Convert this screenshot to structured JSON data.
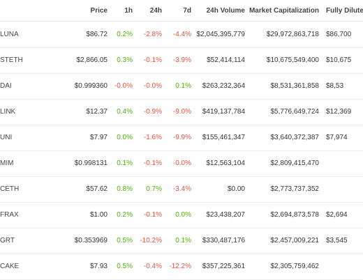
{
  "colors": {
    "positive": "#4eaf0a",
    "negative": "#e15241",
    "text": "#333333"
  },
  "headers": {
    "price": "Price",
    "h1": "1h",
    "h24": "24h",
    "d7": "7d",
    "volume": "24h Volume",
    "mcap": "Market Capitalization",
    "fdv": "Fully Diluted V"
  },
  "rows": [
    {
      "symbol": "LUNA",
      "price": "$86.72",
      "h1": "0.2%",
      "h24": "-2.8%",
      "d7": "-4.4%",
      "volume": "$2,045,395,779",
      "mcap": "$29,972,863,718",
      "fdv": "$86,700"
    },
    {
      "symbol": "STETH",
      "price": "$2,866.05",
      "h1": "0.3%",
      "h24": "-0.1%",
      "d7": "-3.9%",
      "volume": "$52,414,114",
      "mcap": "$10,675,549,400",
      "fdv": "$10,675"
    },
    {
      "symbol": "DAI",
      "price": "$0.999360",
      "h1": "-0.0%",
      "h24": "-0.0%",
      "d7": "0.1%",
      "volume": "$263,232,364",
      "mcap": "$8,531,361,858",
      "fdv": "$8,53"
    },
    {
      "symbol": "LINK",
      "price": "$12.37",
      "h1": "0.4%",
      "h24": "-0.9%",
      "d7": "-9.0%",
      "volume": "$419,137,784",
      "mcap": "$5,776,649,724",
      "fdv": "$12,369"
    },
    {
      "symbol": "UNI",
      "price": "$7.97",
      "h1": "0.0%",
      "h24": "-1.6%",
      "d7": "-9.9%",
      "volume": "$155,461,347",
      "mcap": "$3,640,372,387",
      "fdv": "$7,974"
    },
    {
      "symbol": "MIM",
      "price": "$0.998131",
      "h1": "0.1%",
      "h24": "-0.1%",
      "d7": "-0.0%",
      "volume": "$12,563,104",
      "mcap": "$2,809,415,470",
      "fdv": ""
    },
    {
      "symbol": "CETH",
      "price": "$57.62",
      "h1": "0.8%",
      "h24": "0.7%",
      "d7": "-3.4%",
      "volume": "$0.00",
      "mcap": "$2,773,737,352",
      "fdv": ""
    },
    {
      "symbol": "FRAX",
      "price": "$1.00",
      "h1": "0.2%",
      "h24": "-0.1%",
      "d7": "0.0%",
      "volume": "$23,438,207",
      "mcap": "$2,694,873,578",
      "fdv": "$2,694"
    },
    {
      "symbol": "GRT",
      "price": "$0.353969",
      "h1": "0.5%",
      "h24": "-10.2%",
      "d7": "0.1%",
      "volume": "$330,487,176",
      "mcap": "$2,457,009,221",
      "fdv": "$3,545"
    },
    {
      "symbol": "CAKE",
      "price": "$7.93",
      "h1": "0.5%",
      "h24": "-0.4%",
      "d7": "-12.2%",
      "volume": "$357,225,361",
      "mcap": "$2,305,759,462",
      "fdv": ""
    }
  ]
}
